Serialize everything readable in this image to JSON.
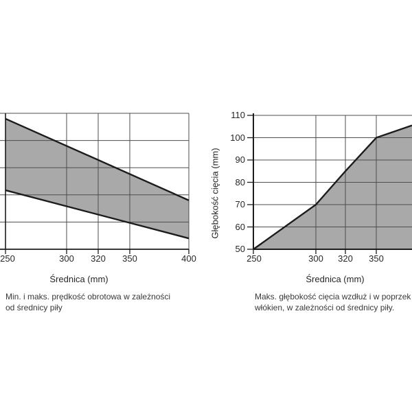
{
  "colors": {
    "background": "#ffffff",
    "area_fill": "#a9a9a9",
    "line": "#1c1c1c",
    "grid": "#4d4d4d",
    "axis": "#1c1c1c",
    "tick_text": "#262626",
    "caption_text": "#383838"
  },
  "chart_data": [
    {
      "id": "rotational-speed-vs-diameter",
      "type": "area",
      "subtype": "band-between-min-and-max-lines",
      "caption": [
        "Min. i maks. prędkość obrotowa w zależności",
        "od średnicy piły"
      ],
      "xlabel": "Średnica (mm)",
      "ylabel": "",
      "x_ticks": [
        "250",
        "300",
        "320",
        "350",
        "400"
      ],
      "y_ticks": [],
      "grid_divisions_y": 5,
      "series": [
        {
          "name": "maks. prędkość (górna linia)",
          "x": [
            250,
            400
          ],
          "y_grid_units": [
            4.8,
            1.8
          ]
        },
        {
          "name": "min. prędkość (dolna linia)",
          "x": [
            250,
            400
          ],
          "y_grid_units": [
            2.17,
            0.4
          ]
        }
      ]
    },
    {
      "id": "cutting-depth-vs-diameter",
      "type": "area",
      "caption": [
        "Maks. głębokość cięcia wzdłuż i w poprzek",
        "włókien, w zależności od średnicy piły."
      ],
      "xlabel": "Średnica (mm)",
      "ylabel": "Głębokość cięcia (mm)",
      "x_ticks": [
        "250",
        "300",
        "320",
        "350"
      ],
      "y_ticks": [
        "110",
        "100",
        "90",
        "80",
        "70",
        "60",
        "50"
      ],
      "ylim": [
        50,
        110
      ],
      "points": [
        [
          250,
          50
        ],
        [
          300,
          70
        ],
        [
          320,
          85
        ],
        [
          350,
          100
        ]
      ],
      "edge_value": 105.5
    }
  ]
}
